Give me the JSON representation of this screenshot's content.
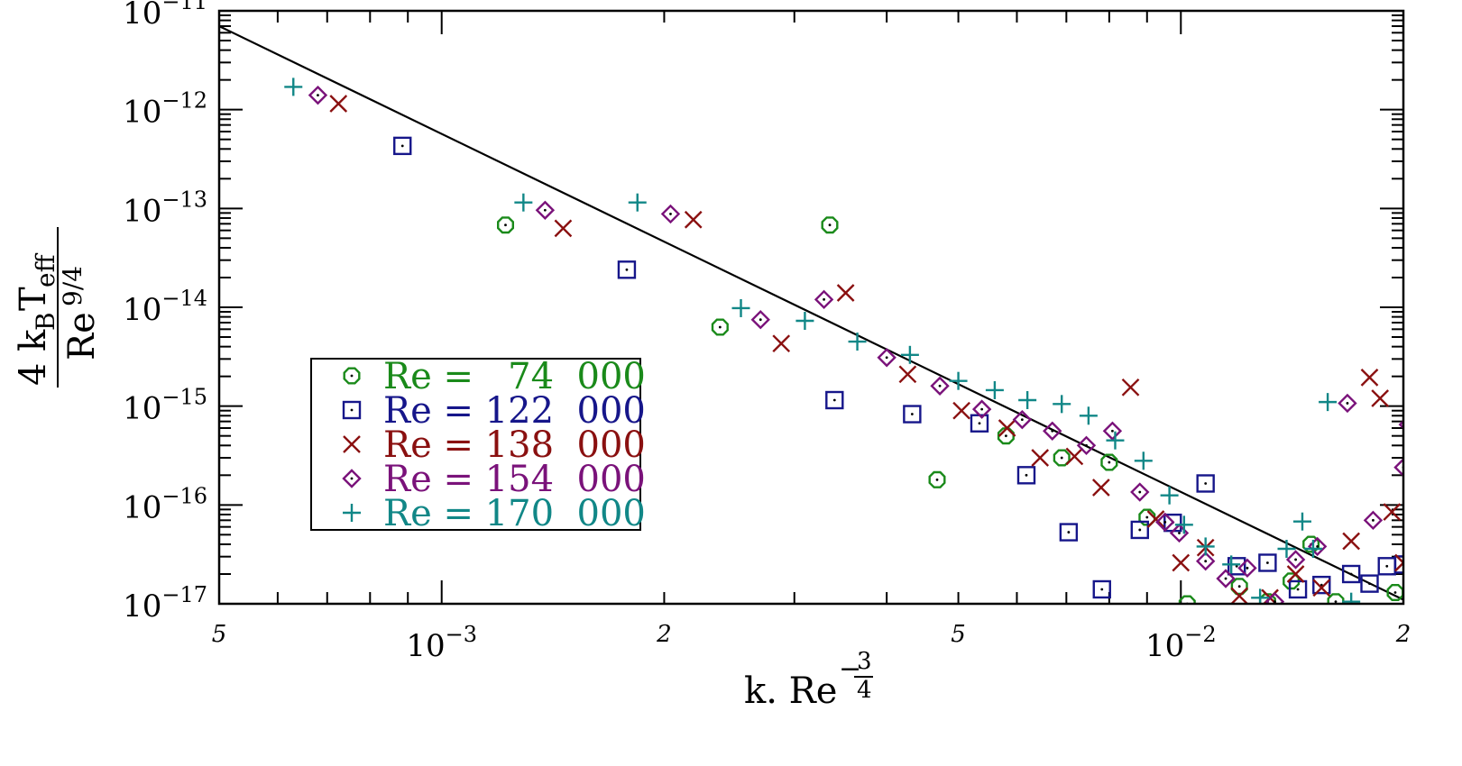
{
  "chart_data": {
    "type": "scatter",
    "title": "",
    "xlabel": {
      "base": "k. Re",
      "exponent_num": "3",
      "exponent_den": "4",
      "exponent_sign": "−"
    },
    "ylabel": {
      "numerator_coef": "4",
      "numerator_k": "k",
      "numerator_k_sub": "B",
      "numerator_T": "T",
      "numerator_T_sub": "eff",
      "denominator": "Re",
      "denominator_sup": "9/4"
    },
    "x_scale": "log",
    "y_scale": "log",
    "xlim": [
      0.0005,
      0.02
    ],
    "ylim": [
      1e-17,
      1e-11
    ],
    "x_ticks": [
      {
        "value": 0.0005,
        "label": "5",
        "kind": "minor"
      },
      {
        "value": 0.001,
        "base": "10",
        "exp": "−3",
        "kind": "major"
      },
      {
        "value": 0.002,
        "label": "2",
        "kind": "minor"
      },
      {
        "value": 0.005,
        "label": "5",
        "kind": "minor"
      },
      {
        "value": 0.01,
        "base": "10",
        "exp": "−2",
        "kind": "major"
      },
      {
        "value": 0.02,
        "label": "2",
        "kind": "minor"
      }
    ],
    "y_ticks": [
      {
        "value": 1e-11,
        "base": "10",
        "exp": "−11"
      },
      {
        "value": 1e-12,
        "base": "10",
        "exp": "−12"
      },
      {
        "value": 1e-13,
        "base": "10",
        "exp": "−13"
      },
      {
        "value": 1e-14,
        "base": "10",
        "exp": "−14"
      },
      {
        "value": 1e-15,
        "base": "10",
        "exp": "−15"
      },
      {
        "value": 1e-16,
        "base": "10",
        "exp": "−16"
      },
      {
        "value": 1e-17,
        "base": "10",
        "exp": "−17"
      }
    ],
    "grid": false,
    "legend_position": "lower-left",
    "fit_line": {
      "points": [
        [
          0.0005,
          7e-12
        ],
        [
          0.02,
          1.1e-17
        ]
      ],
      "color": "#000000"
    },
    "series": [
      {
        "name": "Re =   74  000",
        "marker": "octagon",
        "color": "#1a8a1a",
        "points": [
          [
            0.00122,
            6.8e-14
          ],
          [
            0.00335,
            6.8e-14
          ],
          [
            0.00238,
            6.3e-15
          ],
          [
            0.00468,
            1.8e-16
          ],
          [
            0.0058,
            5e-16
          ],
          [
            0.0069,
            3e-16
          ],
          [
            0.008,
            2.7e-16
          ],
          [
            0.009,
            7.5e-17
          ],
          [
            0.0102,
            1e-17
          ],
          [
            0.012,
            1.5e-17
          ],
          [
            0.0131,
            1.05e-17
          ],
          [
            0.0141,
            1.7e-17
          ],
          [
            0.015,
            4e-17
          ],
          [
            0.0162,
            1.05e-17
          ],
          [
            0.0195,
            1.3e-17
          ]
        ]
      },
      {
        "name": "Re = 122  000",
        "marker": "square",
        "color": "#16168a",
        "points": [
          [
            0.000885,
            4.3e-13
          ],
          [
            0.00178,
            2.4e-14
          ],
          [
            0.0034,
            1.15e-15
          ],
          [
            0.00433,
            8.3e-16
          ],
          [
            0.00534,
            6.7e-16
          ],
          [
            0.00618,
            2e-16
          ],
          [
            0.00705,
            5.3e-17
          ],
          [
            0.00782,
            1.4e-17
          ],
          [
            0.0088,
            5.6e-17
          ],
          [
            0.00975,
            6.6e-17
          ],
          [
            0.0108,
            1.65e-16
          ],
          [
            0.0119,
            2.4e-17
          ],
          [
            0.0131,
            2.6e-17
          ],
          [
            0.0144,
            1.4e-17
          ],
          [
            0.0155,
            1.55e-17
          ],
          [
            0.017,
            2e-17
          ],
          [
            0.018,
            1.6e-17
          ],
          [
            0.019,
            2.4e-17
          ],
          [
            0.02,
            2.5e-17
          ]
        ]
      },
      {
        "name": "Re = 138  000",
        "marker": "x",
        "color": "#8a1010",
        "points": [
          [
            0.000725,
            1.15e-12
          ],
          [
            0.00146,
            6.3e-14
          ],
          [
            0.00219,
            7.7e-14
          ],
          [
            0.00288,
            4.3e-15
          ],
          [
            0.00352,
            1.4e-14
          ],
          [
            0.00427,
            2.1e-15
          ],
          [
            0.00505,
            9e-16
          ],
          [
            0.00582,
            6e-16
          ],
          [
            0.00645,
            3e-16
          ],
          [
            0.00718,
            3.1e-16
          ],
          [
            0.0078,
            1.5e-16
          ],
          [
            0.00855,
            1.55e-15
          ],
          [
            0.00925,
            7.2e-17
          ],
          [
            0.01,
            2.6e-17
          ],
          [
            0.0108,
            3.7e-17
          ],
          [
            0.012,
            1.2e-17
          ],
          [
            0.0132,
            1.15e-17
          ],
          [
            0.0143,
            2e-17
          ],
          [
            0.0155,
            1.45e-17
          ],
          [
            0.017,
            4.3e-17
          ],
          [
            0.018,
            1.95e-15
          ],
          [
            0.0186,
            1.2e-15
          ],
          [
            0.0193,
            8.5e-17
          ],
          [
            0.02,
            2.6e-17
          ]
        ]
      },
      {
        "name": "Re = 154  000",
        "marker": "diamond",
        "color": "#7a127a",
        "points": [
          [
            0.00068,
            1.4e-12
          ],
          [
            0.00138,
            9.6e-14
          ],
          [
            0.00204,
            8.8e-14
          ],
          [
            0.0027,
            7.5e-15
          ],
          [
            0.00329,
            1.2e-14
          ],
          [
            0.004,
            3.1e-15
          ],
          [
            0.00472,
            1.6e-15
          ],
          [
            0.00538,
            9.3e-16
          ],
          [
            0.0061,
            7.3e-16
          ],
          [
            0.0067,
            5.6e-16
          ],
          [
            0.00745,
            4e-16
          ],
          [
            0.00808,
            5.6e-16
          ],
          [
            0.0088,
            1.35e-16
          ],
          [
            0.00952,
            6.7e-17
          ],
          [
            0.00995,
            5.2e-17
          ],
          [
            0.0108,
            2.7e-17
          ],
          [
            0.0115,
            1.8e-17
          ],
          [
            0.0123,
            2.3e-17
          ],
          [
            0.0134,
            1.05e-17
          ],
          [
            0.0143,
            2.8e-17
          ],
          [
            0.0153,
            3.8e-17
          ],
          [
            0.0168,
            1.07e-15
          ],
          [
            0.0182,
            7e-17
          ],
          [
            0.02,
            2.4e-16
          ],
          [
            0.0203,
            6.5e-16
          ]
        ]
      },
      {
        "name": "Re = 170  000",
        "marker": "plus",
        "color": "#118787",
        "points": [
          [
            0.00063,
            1.7e-12
          ],
          [
            0.00129,
            1.15e-13
          ],
          [
            0.00184,
            1.15e-13
          ],
          [
            0.00254,
            9.8e-15
          ],
          [
            0.0031,
            7.3e-15
          ],
          [
            0.00365,
            4.5e-15
          ],
          [
            0.0043,
            3.3e-15
          ],
          [
            0.005,
            1.8e-15
          ],
          [
            0.0056,
            1.45e-15
          ],
          [
            0.0062,
            1.15e-15
          ],
          [
            0.0069,
            1.05e-15
          ],
          [
            0.0075,
            8e-16
          ],
          [
            0.00815,
            4.5e-16
          ],
          [
            0.0089,
            2.8e-16
          ],
          [
            0.00965,
            1.25e-16
          ],
          [
            0.0101,
            6.3e-17
          ],
          [
            0.0108,
            3.8e-17
          ],
          [
            0.0117,
            2.5e-17
          ],
          [
            0.0128,
            1.15e-17
          ],
          [
            0.0139,
            3.6e-17
          ],
          [
            0.0146,
            6.8e-17
          ],
          [
            0.0151,
            3.6e-17
          ],
          [
            0.0158,
            1.1e-15
          ],
          [
            0.017,
            1.05e-17
          ]
        ]
      }
    ]
  }
}
